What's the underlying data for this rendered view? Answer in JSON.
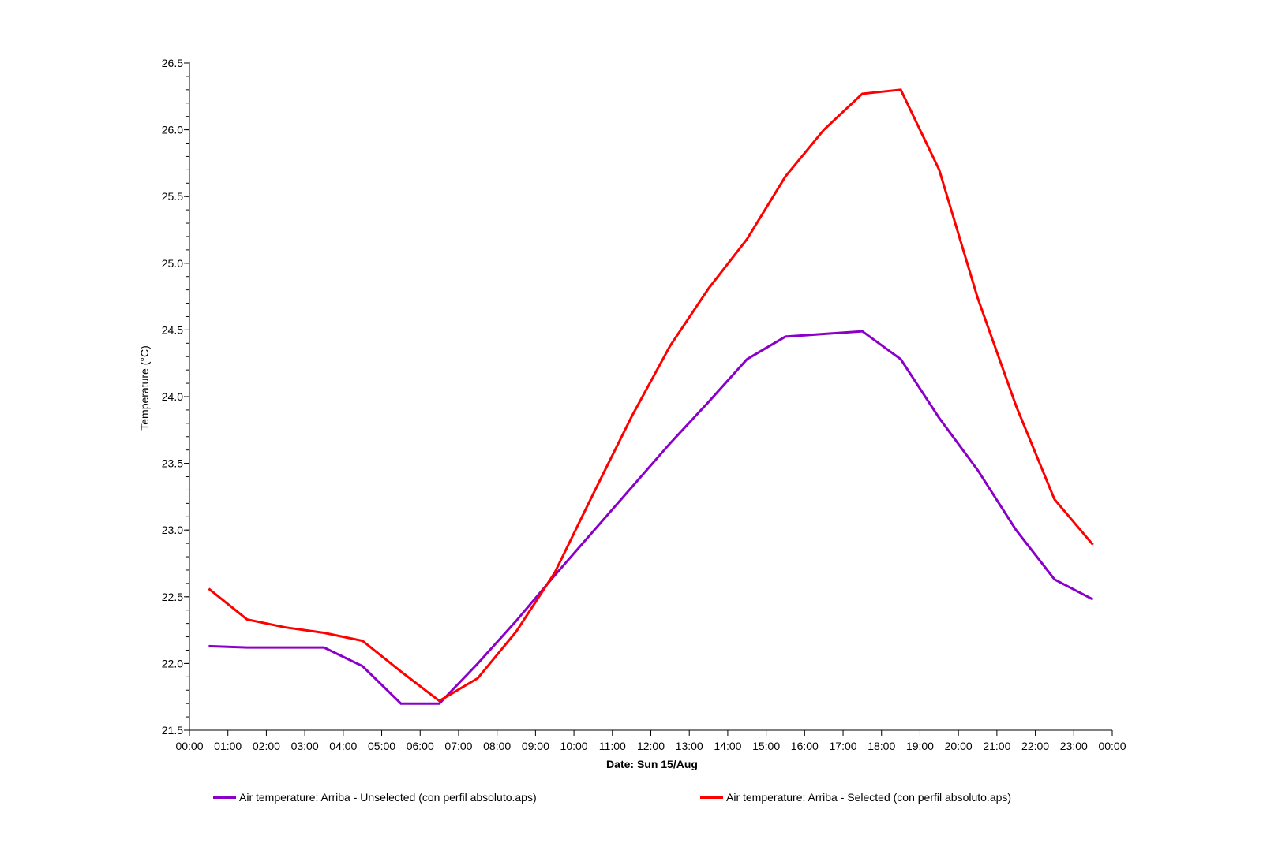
{
  "chart_data": {
    "type": "line",
    "title": "",
    "xlabel": "Date: Sun 15/Aug",
    "ylabel": "Temperature (°C)",
    "ylim": [
      21.5,
      26.5
    ],
    "yticks": [
      "21.5",
      "22.0",
      "22.5",
      "23.0",
      "23.5",
      "24.0",
      "24.5",
      "25.0",
      "25.5",
      "26.0",
      "26.5"
    ],
    "xlim": [
      0,
      24
    ],
    "xticks": [
      "00:00",
      "01:00",
      "02:00",
      "03:00",
      "04:00",
      "05:00",
      "06:00",
      "07:00",
      "08:00",
      "09:00",
      "10:00",
      "11:00",
      "12:00",
      "13:00",
      "14:00",
      "15:00",
      "16:00",
      "17:00",
      "18:00",
      "19:00",
      "20:00",
      "21:00",
      "22:00",
      "23:00",
      "00:00"
    ],
    "x": [
      "00:30",
      "01:30",
      "02:30",
      "03:30",
      "04:30",
      "05:30",
      "06:30",
      "07:30",
      "08:30",
      "09:30",
      "10:30",
      "11:30",
      "12:30",
      "13:30",
      "14:30",
      "15:30",
      "16:30",
      "17:30",
      "18:30",
      "19:30",
      "20:30",
      "21:30",
      "22:30",
      "23:30"
    ],
    "grid": false,
    "legend_position": "bottom",
    "series": [
      {
        "name": "Air temperature: Arriba - Unselected (con perfil absoluto.aps)",
        "color": "#8a00c8",
        "values": [
          22.13,
          22.12,
          22.12,
          22.12,
          21.98,
          21.7,
          21.7,
          22.0,
          22.32,
          22.66,
          22.99,
          23.32,
          23.65,
          23.96,
          24.28,
          24.45,
          24.47,
          24.49,
          24.28,
          23.84,
          23.45,
          23.0,
          22.63,
          22.48
        ]
      },
      {
        "name": "Air temperature: Arriba - Selected (con perfil absoluto.aps)",
        "color": "#ff0000",
        "values": [
          22.56,
          22.33,
          22.27,
          22.23,
          22.17,
          21.94,
          21.72,
          21.89,
          22.24,
          22.68,
          23.27,
          23.85,
          24.38,
          24.81,
          25.18,
          25.65,
          26.0,
          26.27,
          26.3,
          25.7,
          24.74,
          23.93,
          23.23,
          22.89
        ]
      }
    ]
  }
}
